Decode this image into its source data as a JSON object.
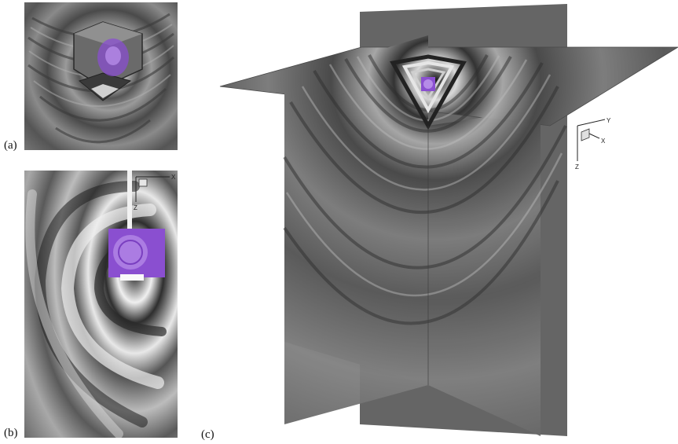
{
  "panels": [
    {
      "label": "(a)"
    },
    {
      "label": "(b)",
      "axes": {
        "x": "X",
        "z": "Z"
      }
    },
    {
      "label": "(c)",
      "axes": {
        "y": "Y",
        "x": "X",
        "z": "Z"
      }
    }
  ],
  "colors": {
    "background": "#ffffff",
    "ring_dark": "#3a3a3a",
    "ring_mid": "#6e6e6e",
    "ring_light": "#c8c8c8",
    "highlight": "#8a4fd0",
    "highlight_light": "#b58be8"
  }
}
